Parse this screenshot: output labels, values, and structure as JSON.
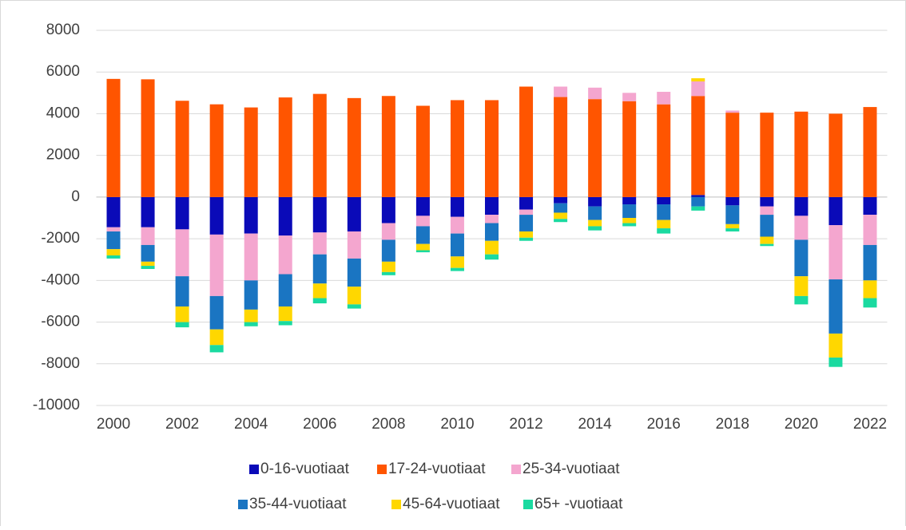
{
  "chart_data": {
    "type": "stacked_bar",
    "categories": [
      "2000",
      null,
      "2002",
      null,
      "2004",
      null,
      "2006",
      null,
      "2008",
      null,
      "2010",
      null,
      "2012",
      null,
      "2014",
      null,
      "2016",
      null,
      "2018",
      null,
      "2020",
      null,
      "2022"
    ],
    "series": [
      {
        "name": "0-16-vuotiaat",
        "color": "#0a0ab8",
        "values": [
          -1450,
          -1450,
          -1550,
          -1800,
          -1750,
          -1850,
          -1700,
          -1650,
          -1250,
          -900,
          -950,
          -850,
          -600,
          -300,
          -450,
          -350,
          -350,
          100,
          -400,
          -450,
          -900,
          -1350,
          -850
        ]
      },
      {
        "name": "17-24-vuotiaat",
        "color": "#ff5500",
        "values": [
          5670,
          5650,
          4620,
          4450,
          4300,
          4780,
          4950,
          4750,
          4850,
          4380,
          4650,
          4650,
          5300,
          4800,
          4700,
          4600,
          4450,
          4750,
          4050,
          4050,
          4100,
          4000,
          4320
        ]
      },
      {
        "name": "25-34-vuotiaat",
        "color": "#f4a6cf",
        "values": [
          -200,
          -850,
          -2250,
          -2950,
          -2250,
          -1850,
          -1050,
          -1300,
          -800,
          -500,
          -800,
          -400,
          -250,
          500,
          550,
          400,
          600,
          700,
          100,
          -400,
          -1150,
          -2600,
          -1450
        ]
      },
      {
        "name": "35-44-vuotiaat",
        "color": "#1a75c2",
        "values": [
          -850,
          -800,
          -1450,
          -1600,
          -1400,
          -1550,
          -1400,
          -1350,
          -1050,
          -850,
          -1100,
          -850,
          -800,
          -450,
          -650,
          -650,
          -750,
          -450,
          -900,
          -1050,
          -1750,
          -2600,
          -1700
        ]
      },
      {
        "name": "45-64-vuotiaat",
        "color": "#ffd700",
        "values": [
          -300,
          -200,
          -750,
          -750,
          -600,
          -700,
          -700,
          -850,
          -500,
          -300,
          -550,
          -650,
          -300,
          -300,
          -300,
          -250,
          -400,
          150,
          -200,
          -350,
          -950,
          -1150,
          -850
        ]
      },
      {
        "name": "65+ -vuotiaat",
        "color": "#1adaa0",
        "values": [
          -150,
          -150,
          -250,
          -350,
          -200,
          -200,
          -250,
          -200,
          -150,
          -100,
          -150,
          -250,
          -150,
          -150,
          -200,
          -150,
          -250,
          -200,
          -150,
          -100,
          -400,
          -450,
          -450
        ]
      }
    ],
    "ylim": [
      -10000,
      8000
    ],
    "yticks": [
      -10000,
      -8000,
      -6000,
      -4000,
      -2000,
      0,
      2000,
      4000,
      6000,
      8000
    ],
    "grid": true
  }
}
